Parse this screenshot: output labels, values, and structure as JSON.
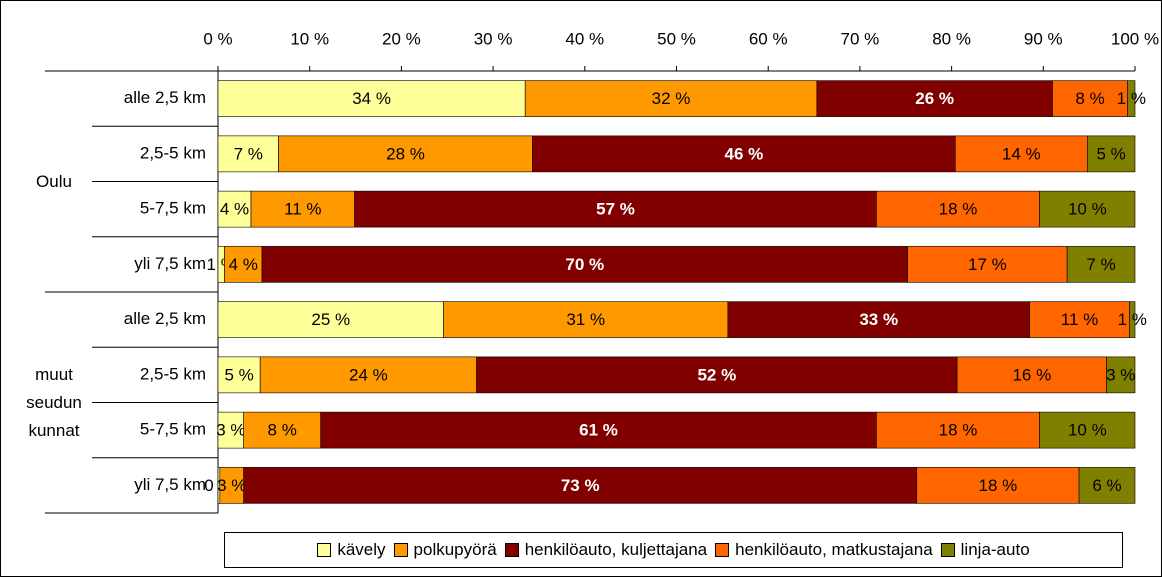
{
  "chart_data": {
    "type": "stacked-bar-horizontal",
    "categories": [
      "alle 2,5 km",
      "2,5-5 km",
      "5-7,5 km",
      "yli 7,5 km",
      "alle 2,5 km",
      "2,5-5 km",
      "5-7,5 km",
      "yli 7,5 km"
    ],
    "groups": [
      "Oulu",
      "muut seudun kunnat"
    ],
    "xlim": [
      0,
      100
    ],
    "xticks": [
      {
        "value": 0,
        "label": "0 %"
      },
      {
        "value": 10,
        "label": "10 %"
      },
      {
        "value": 20,
        "label": "20 %"
      },
      {
        "value": 30,
        "label": "30 %"
      },
      {
        "value": 40,
        "label": "40 %"
      },
      {
        "value": 50,
        "label": "50 %"
      },
      {
        "value": 60,
        "label": "60 %"
      },
      {
        "value": 70,
        "label": "70 %"
      },
      {
        "value": 80,
        "label": "80 %"
      },
      {
        "value": 90,
        "label": "90 %"
      },
      {
        "value": 100,
        "label": "100 %"
      }
    ],
    "legend": "bottom",
    "series": [
      {
        "name": "kävely",
        "color": "#ffff99",
        "label_color": "#000000",
        "values": [
          33.5,
          6.6,
          3.6,
          0.7,
          24.6,
          4.6,
          2.8,
          0.2
        ],
        "value_labels": [
          "34 %",
          "7 %",
          "4 %",
          "1 %",
          "25 %",
          "5 %",
          "3 %",
          "0 %"
        ]
      },
      {
        "name": "polkupyörä",
        "color": "#ff9900",
        "label_color": "#000000",
        "values": [
          31.8,
          27.7,
          11.3,
          4.1,
          31.0,
          23.6,
          8.4,
          2.6
        ],
        "value_labels": [
          "32 %",
          "28 %",
          "11 %",
          "4 %",
          "31 %",
          "24 %",
          "8 %",
          "3 %"
        ]
      },
      {
        "name": "henkilöauto, kuljettajana",
        "color": "#800000",
        "label_color": "#ffffff",
        "values": [
          25.7,
          46.1,
          56.9,
          70.4,
          32.9,
          52.4,
          60.6,
          73.4
        ],
        "value_labels": [
          "26 %",
          "46 %",
          "57 %",
          "70 %",
          "33 %",
          "52 %",
          "61 %",
          "73 %"
        ]
      },
      {
        "name": "henkilöauto, matkustajana",
        "color": "#ff6600",
        "label_color": "#000000",
        "values": [
          8.2,
          14.4,
          17.8,
          17.4,
          10.9,
          16.3,
          17.8,
          17.7
        ],
        "value_labels": [
          "8 %",
          "14 %",
          "18 %",
          "17 %",
          "11 %",
          "16 %",
          "18 %",
          "18 %"
        ]
      },
      {
        "name": "linja-auto",
        "color": "#808000",
        "label_color": "#000000",
        "values": [
          0.8,
          5.2,
          10.4,
          7.4,
          0.6,
          3.1,
          10.4,
          6.1
        ],
        "value_labels": [
          "1 %",
          "5 %",
          "10 %",
          "7 %",
          "1 %",
          "3 %",
          "10 %",
          "6 %"
        ]
      }
    ]
  }
}
